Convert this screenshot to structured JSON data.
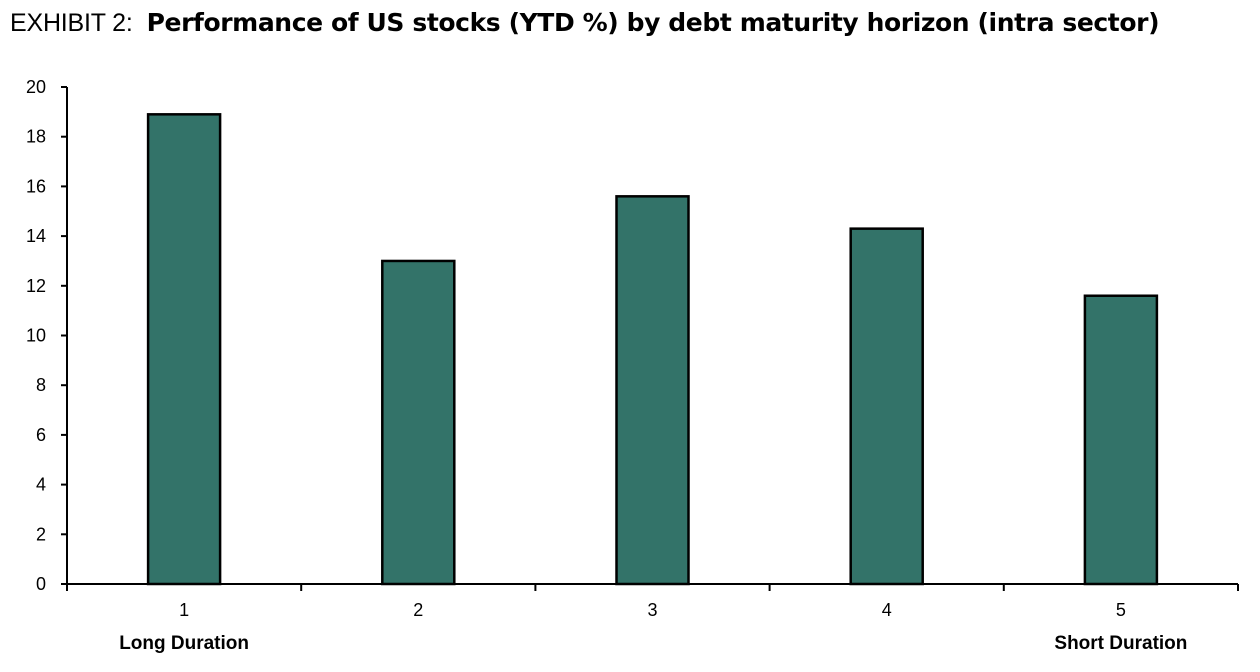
{
  "header": {
    "exhibit_label": "EXHIBIT 2:",
    "title": "Performance of US stocks (YTD %) by debt maturity horizon (intra sector)"
  },
  "chart_data": {
    "type": "bar",
    "title": "Performance of US stocks (YTD %) by debt maturity horizon (intra sector)",
    "categories": [
      "1",
      "2",
      "3",
      "4",
      "5"
    ],
    "values": [
      18.9,
      13.0,
      15.6,
      14.3,
      11.6
    ],
    "y_ticks": [
      "0",
      "2",
      "4",
      "6",
      "8",
      "10",
      "12",
      "14",
      "16",
      "18",
      "20"
    ],
    "ylim": [
      0,
      20
    ],
    "grid": false,
    "bar_color": "#337369",
    "annotations": [
      {
        "category": "1",
        "text": "Long Duration"
      },
      {
        "category": "5",
        "text": "Short Duration"
      }
    ]
  }
}
